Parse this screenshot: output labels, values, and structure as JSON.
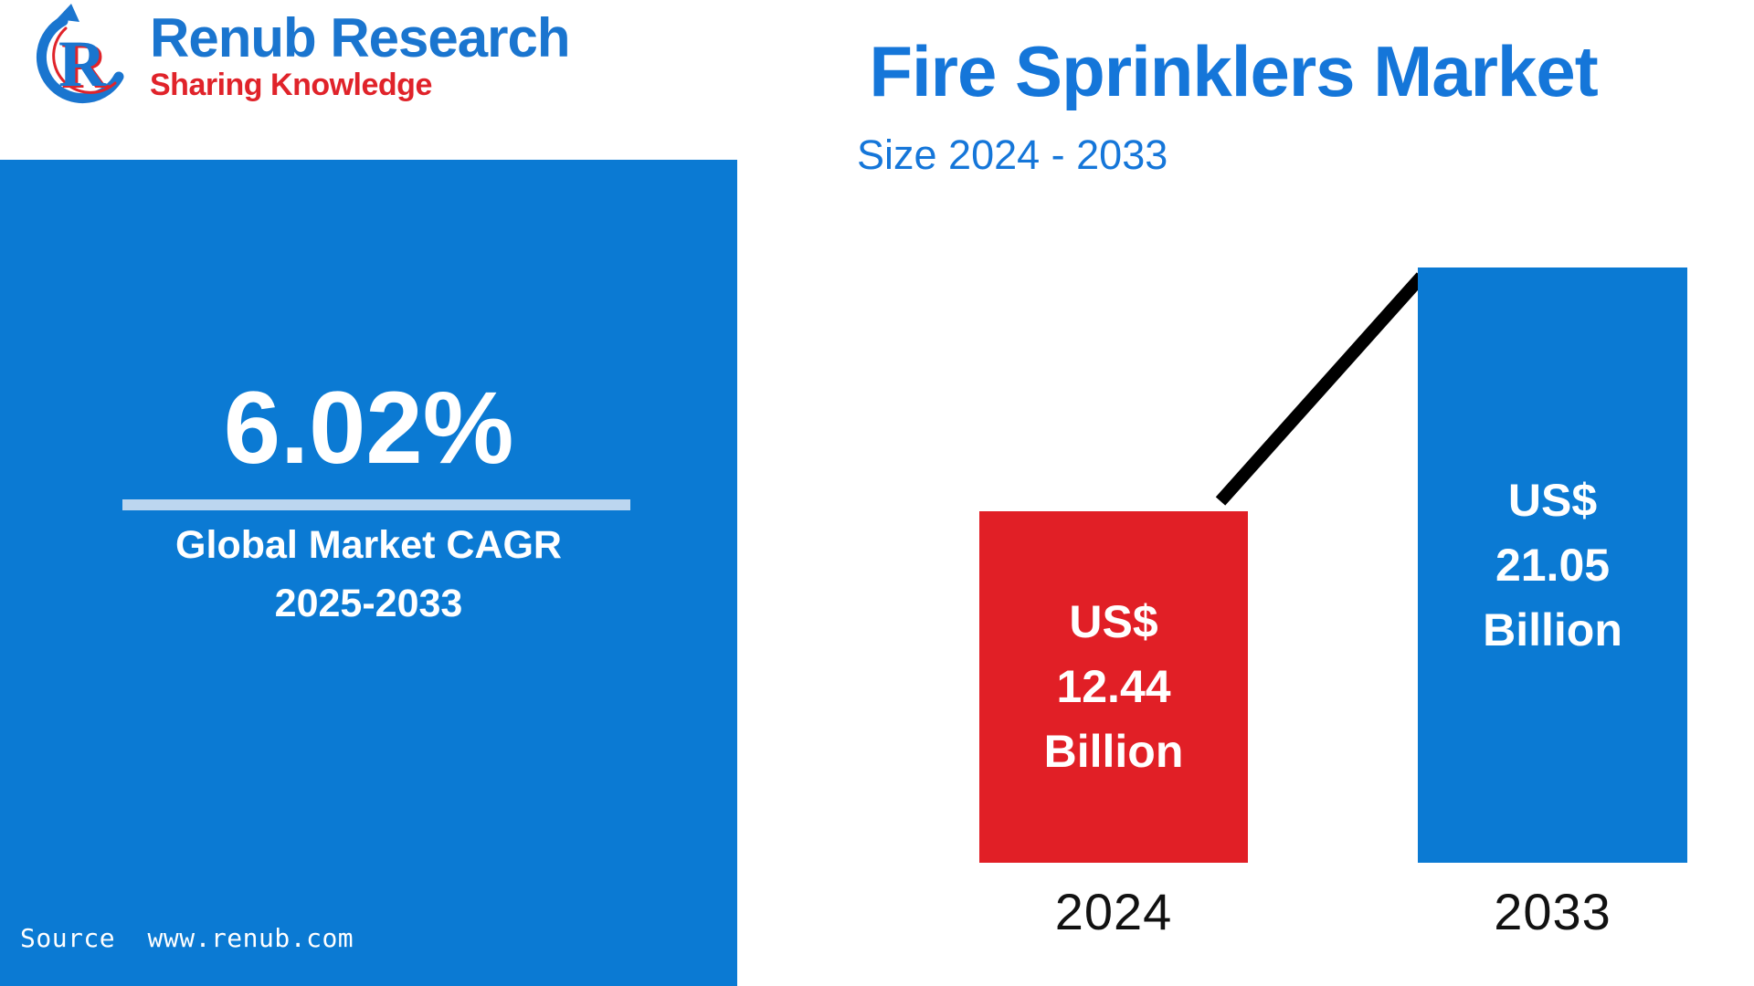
{
  "header": {
    "brand_name": "Renub Research",
    "tagline": "Sharing Knowledge",
    "logo_icon": "circular-arrow-R-logo"
  },
  "panel": {
    "cagr_value": "6.02%",
    "label_line1": "Global Market CAGR",
    "label_line2": "2025-2033",
    "source_label": "Source",
    "source_url": "www.renub.com"
  },
  "chart_data": {
    "type": "bar",
    "title": "Fire Sprinklers Market",
    "subtitle": "Size 2024 - 2033",
    "categories": [
      "2024",
      "2033"
    ],
    "values": [
      12.44,
      21.05
    ],
    "ylim": [
      0,
      21.05
    ],
    "unit": "US$ Billion",
    "grid": false,
    "legend": "none",
    "bars": [
      {
        "year": "2024",
        "value": 12.44,
        "color": "#e11f26",
        "label_lines": [
          "US$",
          "12.44",
          "Billion"
        ]
      },
      {
        "year": "2033",
        "value": 21.05,
        "color": "#0b7ad3",
        "label_lines": [
          "US$",
          "21.05",
          "Billion"
        ]
      }
    ],
    "annotations": [
      {
        "name": "trend-line",
        "from_bar": "2024",
        "to_bar": "2033",
        "color": "#000000"
      }
    ]
  },
  "colors": {
    "panel_blue": "#0b7ad3",
    "bar_blue": "#0b7ad3",
    "bar_red": "#e11f26",
    "title_blue": "#1576d9",
    "brand_blue": "#1a75cf",
    "tagline_red": "#e0232a",
    "divider_light": "#bcd6ef",
    "trend_line_black": "#000000",
    "axis_label_dark": "#111111",
    "background": "#ffffff"
  }
}
